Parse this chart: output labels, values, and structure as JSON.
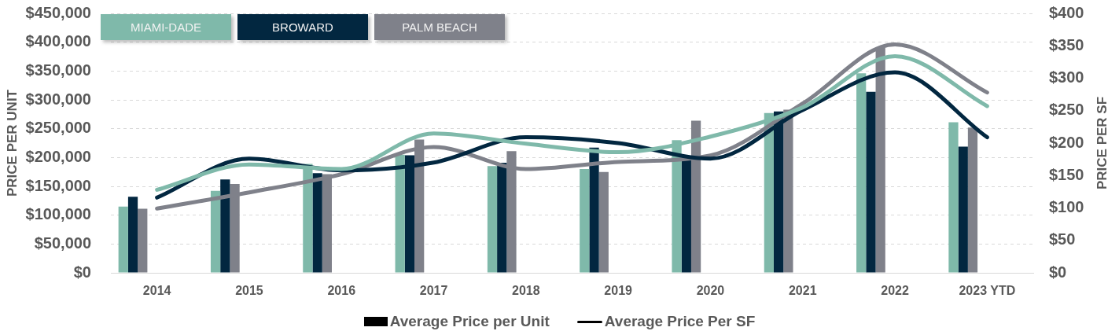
{
  "chart_data": {
    "type": "bar",
    "categories": [
      "2014",
      "2015",
      "2016",
      "2017",
      "2018",
      "2019",
      "2020",
      "2021",
      "2022",
      "2023 YTD"
    ],
    "series": [
      {
        "name": "MIAMI-DADE",
        "color": "#7fb9aa",
        "values": [
          115000,
          142000,
          189000,
          205000,
          185000,
          180000,
          230000,
          277000,
          346000,
          261000
        ]
      },
      {
        "name": "BROWARD",
        "color": "#022740",
        "values": [
          132000,
          162000,
          173000,
          204000,
          191000,
          217000,
          195000,
          280000,
          314000,
          219000
        ]
      },
      {
        "name": "PALM BEACH",
        "color": "#7f818a",
        "values": [
          111000,
          154000,
          171000,
          231000,
          211000,
          175000,
          264000,
          283000,
          390000,
          252000
        ]
      },
      {
        "type": "line",
        "axis": "y2",
        "color": "#7fb9aa",
        "values": [
          128,
          167,
          160,
          215,
          199,
          186,
          210,
          255,
          334,
          257
        ]
      },
      {
        "type": "line",
        "axis": "y2",
        "color": "#022740",
        "values": [
          116,
          176,
          158,
          170,
          209,
          200,
          176,
          251,
          309,
          209
        ]
      },
      {
        "type": "line",
        "axis": "y2",
        "color": "#7f818a",
        "values": [
          99,
          124,
          152,
          194,
          160,
          171,
          181,
          261,
          352,
          278
        ]
      }
    ],
    "ylabel": "PRICE PER UNIT",
    "y2label": "PRICE PER SF",
    "ylim": [
      0,
      450000
    ],
    "yticks": [
      {
        "value": 0,
        "label": "$0"
      },
      {
        "value": 50000,
        "label": "$50,000"
      },
      {
        "value": 100000,
        "label": "$100,000"
      },
      {
        "value": 150000,
        "label": "$150,000"
      },
      {
        "value": 200000,
        "label": "$200,000"
      },
      {
        "value": 250000,
        "label": "$250,000"
      },
      {
        "value": 300000,
        "label": "$300,000"
      },
      {
        "value": 350000,
        "label": "$350,000"
      },
      {
        "value": 400000,
        "label": "$400,000"
      },
      {
        "value": 450000,
        "label": "$450,000"
      }
    ],
    "y2lim": [
      0,
      400
    ],
    "y2ticks": [
      {
        "value": 0,
        "label": "$0"
      },
      {
        "value": 50,
        "label": "$50"
      },
      {
        "value": 100,
        "label": "$100"
      },
      {
        "value": 150,
        "label": "$150"
      },
      {
        "value": 200,
        "label": "$200"
      },
      {
        "value": 250,
        "label": "$250"
      },
      {
        "value": 300,
        "label": "$300"
      },
      {
        "value": 350,
        "label": "$350"
      },
      {
        "value": 400,
        "label": "$400"
      }
    ],
    "grid": "y",
    "legend": "top left",
    "marker": "none",
    "line_style": "solid",
    "annotations": [
      "Average Price per Unit",
      "Average Price Per SF"
    ]
  }
}
